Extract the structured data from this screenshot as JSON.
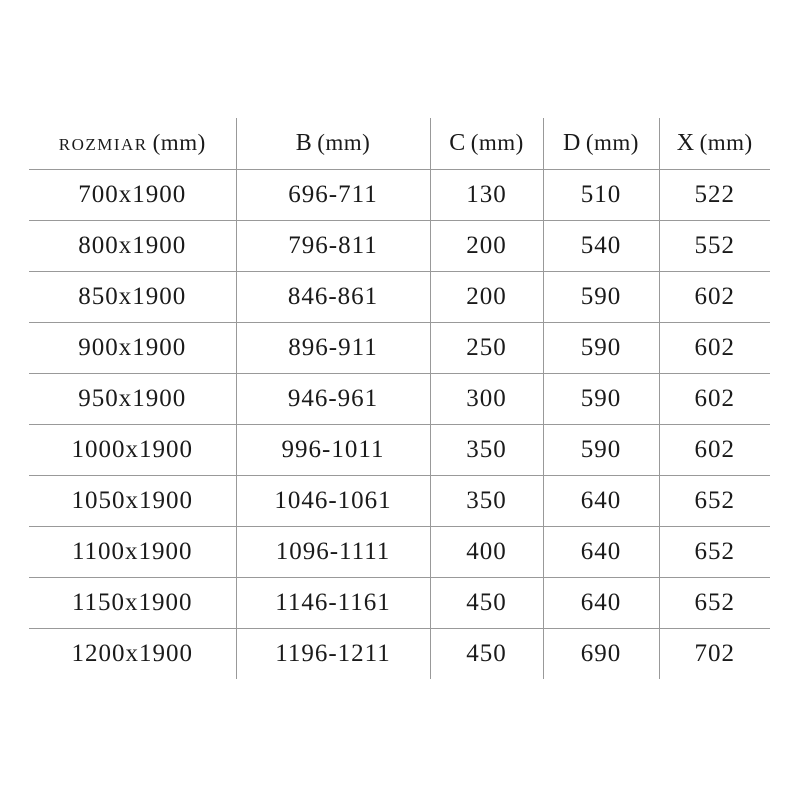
{
  "page": {
    "background_color": "#ffffff",
    "text_color": "#1a1a1a",
    "grid_line_color": "#999999"
  },
  "table": {
    "columns": [
      {
        "key": "rozmiar",
        "label": "ROZMIAR",
        "unit": "(mm)"
      },
      {
        "key": "b",
        "label": "B",
        "unit": "(mm)"
      },
      {
        "key": "c",
        "label": "C",
        "unit": "(mm)"
      },
      {
        "key": "d",
        "label": "D",
        "unit": "(mm)"
      },
      {
        "key": "x",
        "label": "X",
        "unit": "(mm)"
      }
    ],
    "rows": [
      [
        "700x1900",
        "696-711",
        "130",
        "510",
        "522"
      ],
      [
        "800x1900",
        "796-811",
        "200",
        "540",
        "552"
      ],
      [
        "850x1900",
        "846-861",
        "200",
        "590",
        "602"
      ],
      [
        "900x1900",
        "896-911",
        "250",
        "590",
        "602"
      ],
      [
        "950x1900",
        "946-961",
        "300",
        "590",
        "602"
      ],
      [
        "1000x1900",
        "996-1011",
        "350",
        "590",
        "602"
      ],
      [
        "1050x1900",
        "1046-1061",
        "350",
        "640",
        "652"
      ],
      [
        "1100x1900",
        "1096-1111",
        "400",
        "640",
        "652"
      ],
      [
        "1150x1900",
        "1146-1161",
        "450",
        "640",
        "652"
      ],
      [
        "1200x1900",
        "1196-1211",
        "450",
        "690",
        "702"
      ]
    ]
  },
  "chart_data": {
    "type": "table",
    "columns": [
      "ROZMIAR (mm)",
      "B (mm)",
      "C (mm)",
      "D (mm)",
      "X (mm)"
    ],
    "rows": [
      [
        "700x1900",
        "696-711",
        130,
        510,
        522
      ],
      [
        "800x1900",
        "796-811",
        200,
        540,
        552
      ],
      [
        "850x1900",
        "846-861",
        200,
        590,
        602
      ],
      [
        "900x1900",
        "896-911",
        250,
        590,
        602
      ],
      [
        "950x1900",
        "946-961",
        300,
        590,
        602
      ],
      [
        "1000x1900",
        "996-1011",
        350,
        590,
        602
      ],
      [
        "1050x1900",
        "1046-1061",
        350,
        640,
        652
      ],
      [
        "1100x1900",
        "1096-1111",
        400,
        640,
        652
      ],
      [
        "1150x1900",
        "1146-1161",
        450,
        640,
        652
      ],
      [
        "1200x1900",
        "1196-1211",
        450,
        690,
        702
      ]
    ],
    "layout_hints": {
      "grid": "internal-lines-only",
      "header_row": true,
      "cell_alignment": "center"
    }
  }
}
